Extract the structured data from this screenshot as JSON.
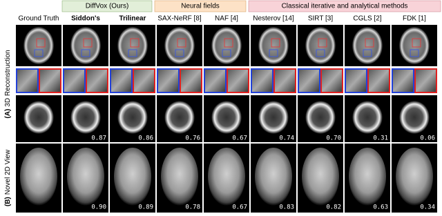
{
  "groups": [
    {
      "label": "DiffVox (Ours)"
    },
    {
      "label": "Neural fields"
    },
    {
      "label": "Classical iterative and analytical methods"
    }
  ],
  "methods": [
    "Ground Truth",
    "Siddon's",
    "Trilinear",
    "SAX-NeRF [8]",
    "NAF [4]",
    "Nesterov [14]",
    "SIRT [3]",
    "CGLS [2]",
    "FDK [1]"
  ],
  "row_labels": [
    {
      "tag": "(A)",
      "text": "3D Reconstruction"
    },
    {
      "tag": "(B)",
      "text": "Novel 2D View"
    }
  ],
  "scores": {
    "reconstruction": [
      "0.87",
      "0.86",
      "0.76",
      "0.67",
      "0.74",
      "0.70",
      "0.31",
      "0.06"
    ],
    "novel_view": [
      "0.90",
      "0.89",
      "0.78",
      "0.67",
      "0.83",
      "0.82",
      "0.63",
      "0.34"
    ]
  }
}
